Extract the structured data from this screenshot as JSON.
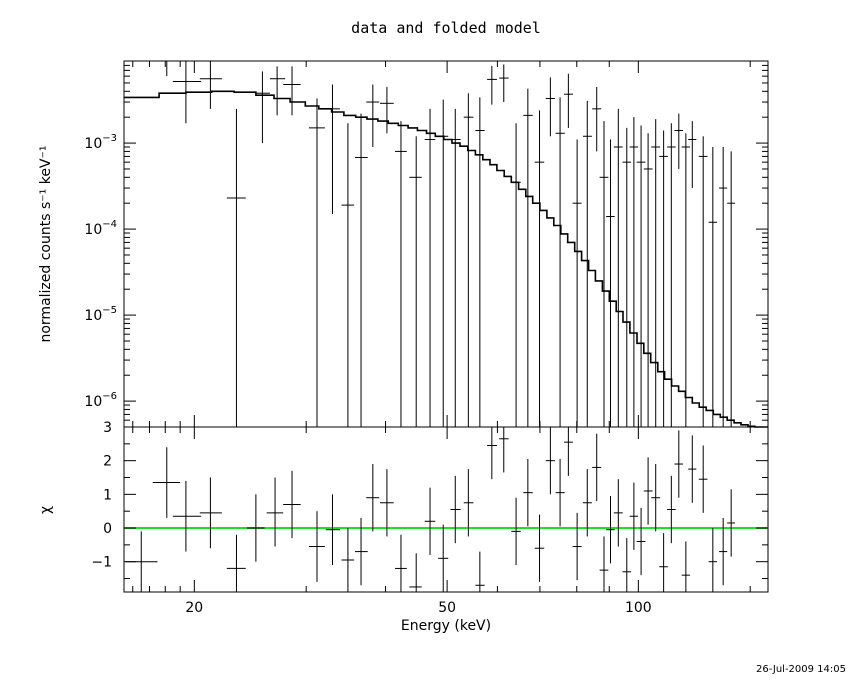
{
  "chart_data": {
    "type": "scatter",
    "title": "data and folded model",
    "xlabel": "Energy (keV)",
    "xscale": "log",
    "xlim": [
      15.5,
      160
    ],
    "x_ticks": [
      {
        "value": 20,
        "label": "20"
      },
      {
        "value": 50,
        "label": "50"
      },
      {
        "value": 100,
        "label": "100"
      }
    ],
    "top_panel": {
      "ylabel": "normalized counts s⁻¹ keV⁻¹",
      "yscale": "log",
      "ylim": [
        5e-07,
        0.009
      ],
      "y_ticks": [
        {
          "value": 0.001,
          "mantissa": "10",
          "exponent": "−3"
        },
        {
          "value": 0.0001,
          "mantissa": "10",
          "exponent": "−4"
        },
        {
          "value": 1e-05,
          "mantissa": "10",
          "exponent": "−5"
        },
        {
          "value": 1e-06,
          "mantissa": "10",
          "exponent": "−6"
        }
      ],
      "data_points": [
        {
          "x": 16.5,
          "xlo": 15.6,
          "xhi": 17.5,
          "y": 0.009,
          "ylo": 0.009,
          "yhi": 0.009
        },
        {
          "x": 18.1,
          "xlo": 17.2,
          "xhi": 19.0,
          "y": 0.009,
          "ylo": 0.006,
          "yhi": 0.009
        },
        {
          "x": 19.4,
          "xlo": 18.5,
          "xhi": 20.5,
          "y": 0.0052,
          "ylo": 0.0017,
          "yhi": 0.009
        },
        {
          "x": 21.2,
          "xlo": 20.4,
          "xhi": 22.1,
          "y": 0.0056,
          "ylo": 0.0025,
          "yhi": 0.009
        },
        {
          "x": 23.3,
          "xlo": 22.5,
          "xhi": 24.1,
          "y": 0.00023,
          "ylo": 5e-07,
          "yhi": 0.0025
        },
        {
          "x": 25.6,
          "xlo": 25.0,
          "xhi": 26.3,
          "y": 0.0038,
          "ylo": 0.001,
          "yhi": 0.0068
        },
        {
          "x": 27.0,
          "xlo": 26.3,
          "xhi": 27.8,
          "y": 0.0056,
          "ylo": 0.0021,
          "yhi": 0.0078
        },
        {
          "x": 28.5,
          "xlo": 27.6,
          "xhi": 29.4,
          "y": 0.0048,
          "ylo": 0.0021,
          "yhi": 0.0078
        },
        {
          "x": 31.2,
          "xlo": 30.3,
          "xhi": 32.1,
          "y": 0.0015,
          "ylo": 5e-07,
          "yhi": 0.0033
        },
        {
          "x": 33.0,
          "xlo": 32.2,
          "xhi": 33.9,
          "y": 0.0025,
          "ylo": 0.00015,
          "yhi": 0.0048
        },
        {
          "x": 34.9,
          "xlo": 34.1,
          "xhi": 35.7,
          "y": 0.00019,
          "ylo": 5e-07,
          "yhi": 0.0017
        },
        {
          "x": 36.6,
          "xlo": 35.8,
          "xhi": 37.5,
          "y": 0.00068,
          "ylo": 5e-07,
          "yhi": 0.0022
        },
        {
          "x": 38.2,
          "xlo": 37.3,
          "xhi": 39.1,
          "y": 0.003,
          "ylo": 0.0009,
          "yhi": 0.0048
        },
        {
          "x": 40.2,
          "xlo": 39.2,
          "xhi": 41.2,
          "y": 0.0029,
          "ylo": 0.0013,
          "yhi": 0.0045
        },
        {
          "x": 42.3,
          "xlo": 41.4,
          "xhi": 43.2,
          "y": 0.0008,
          "ylo": 5e-07,
          "yhi": 0.0018
        },
        {
          "x": 44.7,
          "xlo": 43.6,
          "xhi": 45.6,
          "y": 0.0004,
          "ylo": 5e-07,
          "yhi": 0.0012
        },
        {
          "x": 47.0,
          "xlo": 46.1,
          "xhi": 47.9,
          "y": 0.0011,
          "ylo": 5e-07,
          "yhi": 0.0025
        },
        {
          "x": 49.3,
          "xlo": 48.4,
          "xhi": 50.2,
          "y": 0.0012,
          "ylo": 5e-07,
          "yhi": 0.0032
        },
        {
          "x": 51.5,
          "xlo": 50.6,
          "xhi": 52.5,
          "y": 0.0011,
          "ylo": 5e-07,
          "yhi": 0.0025
        },
        {
          "x": 54.0,
          "xlo": 53.1,
          "xhi": 55.0,
          "y": 0.002,
          "ylo": 5e-07,
          "yhi": 0.0038
        },
        {
          "x": 56.3,
          "xlo": 55.4,
          "xhi": 57.3,
          "y": 0.0014,
          "ylo": 5e-07,
          "yhi": 0.0034
        },
        {
          "x": 58.8,
          "xlo": 57.8,
          "xhi": 59.9,
          "y": 0.0055,
          "ylo": 0.0028,
          "yhi": 0.0079
        },
        {
          "x": 61.4,
          "xlo": 60.4,
          "xhi": 62.5,
          "y": 0.0057,
          "ylo": 0.003,
          "yhi": 0.0082
        },
        {
          "x": 64.2,
          "xlo": 63.1,
          "xhi": 65.3,
          "y": 0.00035,
          "ylo": 5e-07,
          "yhi": 0.0017
        },
        {
          "x": 67.0,
          "xlo": 65.9,
          "xhi": 68.2,
          "y": 0.0021,
          "ylo": 5e-07,
          "yhi": 0.0043
        },
        {
          "x": 69.9,
          "xlo": 68.7,
          "xhi": 71.1,
          "y": 0.0006,
          "ylo": 5e-07,
          "yhi": 0.0024
        },
        {
          "x": 72.7,
          "xlo": 71.5,
          "xhi": 73.9,
          "y": 0.0033,
          "ylo": 0.0012,
          "yhi": 0.0058
        },
        {
          "x": 75.3,
          "xlo": 74.1,
          "xhi": 76.6,
          "y": 0.0013,
          "ylo": 5e-07,
          "yhi": 0.0034
        },
        {
          "x": 77.6,
          "xlo": 76.4,
          "xhi": 78.9,
          "y": 0.0037,
          "ylo": 0.0015,
          "yhi": 0.0064
        },
        {
          "x": 80.1,
          "xlo": 78.8,
          "xhi": 81.4,
          "y": 0.0002,
          "ylo": 5e-07,
          "yhi": 0.0011
        },
        {
          "x": 83.1,
          "xlo": 81.8,
          "xhi": 84.5,
          "y": 0.0012,
          "ylo": 5e-07,
          "yhi": 0.0031
        },
        {
          "x": 86.0,
          "xlo": 84.6,
          "xhi": 87.4,
          "y": 0.0025,
          "ylo": 0.0008,
          "yhi": 0.0045
        },
        {
          "x": 88.3,
          "xlo": 86.9,
          "xhi": 89.7,
          "y": 0.0004,
          "ylo": 5e-07,
          "yhi": 0.0018
        },
        {
          "x": 90.4,
          "xlo": 89.0,
          "xhi": 91.8,
          "y": 0.00014,
          "ylo": 5e-07,
          "yhi": 0.0011
        },
        {
          "x": 93.0,
          "xlo": 91.5,
          "xhi": 94.5,
          "y": 0.0009,
          "ylo": 5e-07,
          "yhi": 0.0025
        },
        {
          "x": 95.9,
          "xlo": 94.4,
          "xhi": 97.4,
          "y": 0.0006,
          "ylo": 5e-07,
          "yhi": 0.0015
        },
        {
          "x": 98.4,
          "xlo": 96.9,
          "xhi": 99.9,
          "y": 0.0009,
          "ylo": 5e-07,
          "yhi": 0.002
        },
        {
          "x": 101.0,
          "xlo": 99.4,
          "xhi": 102.6,
          "y": 0.0006,
          "ylo": 5e-07,
          "yhi": 0.0016
        },
        {
          "x": 103.6,
          "xlo": 102.0,
          "xhi": 105.3,
          "y": 0.0005,
          "ylo": 5e-07,
          "yhi": 0.0013
        },
        {
          "x": 106.5,
          "xlo": 104.8,
          "xhi": 108.2,
          "y": 0.0009,
          "ylo": 5e-07,
          "yhi": 0.0019
        },
        {
          "x": 109.6,
          "xlo": 107.9,
          "xhi": 111.3,
          "y": 0.0007,
          "ylo": 5e-07,
          "yhi": 0.0014
        },
        {
          "x": 112.7,
          "xlo": 111.0,
          "xhi": 114.5,
          "y": 0.0009,
          "ylo": 5e-07,
          "yhi": 0.0017
        },
        {
          "x": 115.8,
          "xlo": 114.0,
          "xhi": 117.6,
          "y": 0.0014,
          "ylo": 0.0005,
          "yhi": 0.0022
        },
        {
          "x": 118.8,
          "xlo": 117.0,
          "xhi": 120.6,
          "y": 0.0009,
          "ylo": 5e-07,
          "yhi": 0.0013
        },
        {
          "x": 121.6,
          "xlo": 119.8,
          "xhi": 123.4,
          "y": 0.0011,
          "ylo": 0.0003,
          "yhi": 0.0018
        },
        {
          "x": 126.5,
          "xlo": 124.5,
          "xhi": 128.5,
          "y": 0.0007,
          "ylo": 5e-07,
          "yhi": 0.0012
        },
        {
          "x": 131.0,
          "xlo": 129.0,
          "xhi": 133.0,
          "y": 0.00012,
          "ylo": 5e-07,
          "yhi": 0.0009
        },
        {
          "x": 136.0,
          "xlo": 134.0,
          "xhi": 138.0,
          "y": 0.0003,
          "ylo": 5e-07,
          "yhi": 0.0009
        },
        {
          "x": 140.0,
          "xlo": 138.0,
          "xhi": 142.0,
          "y": 0.0002,
          "ylo": 5e-07,
          "yhi": 0.0008
        }
      ],
      "model": {
        "edges": [
          15.5,
          17.6,
          19.4,
          21.3,
          23.1,
          25.0,
          26.7,
          28.3,
          29.9,
          31.4,
          32.9,
          34.4,
          35.9,
          37.4,
          38.9,
          40.4,
          41.9,
          43.4,
          44.9,
          46.4,
          47.9,
          49.4,
          50.9,
          52.4,
          53.9,
          55.4,
          56.9,
          58.4,
          59.9,
          61.5,
          63.1,
          64.8,
          66.5,
          68.2,
          70.0,
          71.8,
          73.6,
          75.5,
          77.4,
          79.4,
          81.4,
          83.5,
          85.6,
          87.8,
          90.0,
          92.3,
          94.6,
          97.0,
          99.5,
          102.0,
          104.6,
          107.3,
          110.0,
          112.8,
          115.7,
          118.6,
          121.6,
          124.7,
          127.9,
          131.2,
          134.6,
          138.0,
          141.5,
          145.1,
          148.8,
          152.6,
          160.0
        ],
        "values": [
          0.0034,
          0.0038,
          0.0039,
          0.004,
          0.0039,
          0.0036,
          0.0033,
          0.003,
          0.0027,
          0.0025,
          0.0023,
          0.0021,
          0.002,
          0.0019,
          0.0018,
          0.0017,
          0.0016,
          0.0015,
          0.0014,
          0.0013,
          0.0012,
          0.0011,
          0.001,
          0.00092,
          0.00082,
          0.00073,
          0.00064,
          0.00056,
          0.00048,
          0.00041,
          0.00035,
          0.00029,
          0.00024,
          0.0002,
          0.000165,
          0.000135,
          0.00011,
          8.8e-05,
          7e-05,
          5.5e-05,
          4.3e-05,
          3.3e-05,
          2.5e-05,
          1.9e-05,
          1.45e-05,
          1.1e-05,
          8.3e-06,
          6.2e-06,
          4.7e-06,
          3.6e-06,
          2.8e-06,
          2.2e-06,
          1.8e-06,
          1.5e-06,
          1.3e-06,
          1.1e-06,
          9.5e-07,
          8.5e-07,
          7.8e-07,
          7e-07,
          6.5e-07,
          6e-07,
          5.6e-07,
          5.3e-07,
          5.1e-07,
          5e-07
        ]
      }
    },
    "bottom_panel": {
      "ylabel": "χ",
      "ylim": [
        -1.9,
        3.0
      ],
      "y_ticks": [
        {
          "value": 3,
          "label": "3"
        },
        {
          "value": 2,
          "label": "2"
        },
        {
          "value": 1,
          "label": "1"
        },
        {
          "value": 0,
          "label": "0"
        },
        {
          "value": -1,
          "label": "−1"
        }
      ],
      "zero_line": {
        "value": 0,
        "color": "#22dd22"
      },
      "residuals": [
        {
          "x": 16.5,
          "xlo": 15.6,
          "xhi": 17.5,
          "y": -1.0,
          "ylo": -1.9,
          "yhi": -0.1
        },
        {
          "x": 18.1,
          "xlo": 17.2,
          "xhi": 19.0,
          "y": 1.35,
          "ylo": 0.3,
          "yhi": 2.4
        },
        {
          "x": 19.4,
          "xlo": 18.5,
          "xhi": 20.5,
          "y": 0.35,
          "ylo": -0.7,
          "yhi": 1.4
        },
        {
          "x": 21.2,
          "xlo": 20.4,
          "xhi": 22.1,
          "y": 0.45,
          "ylo": -0.6,
          "yhi": 1.5
        },
        {
          "x": 23.3,
          "xlo": 22.5,
          "xhi": 24.1,
          "y": -1.2,
          "ylo": -1.9,
          "yhi": -0.2
        },
        {
          "x": 25.0,
          "xlo": 24.2,
          "xhi": 25.8,
          "y": 0.0,
          "ylo": -1.0,
          "yhi": 1.0
        },
        {
          "x": 26.8,
          "xlo": 26.0,
          "xhi": 27.6,
          "y": 0.45,
          "ylo": -0.55,
          "yhi": 1.5
        },
        {
          "x": 28.5,
          "xlo": 27.6,
          "xhi": 29.4,
          "y": 0.7,
          "ylo": -0.3,
          "yhi": 1.7
        },
        {
          "x": 31.2,
          "xlo": 30.3,
          "xhi": 32.1,
          "y": -0.55,
          "ylo": -1.6,
          "yhi": 0.5
        },
        {
          "x": 33.0,
          "xlo": 32.2,
          "xhi": 33.9,
          "y": -0.05,
          "ylo": -1.1,
          "yhi": 1.0
        },
        {
          "x": 34.9,
          "xlo": 34.1,
          "xhi": 35.7,
          "y": -0.95,
          "ylo": -1.9,
          "yhi": 0.0
        },
        {
          "x": 36.6,
          "xlo": 35.8,
          "xhi": 37.5,
          "y": -0.7,
          "ylo": -1.7,
          "yhi": 0.3
        },
        {
          "x": 38.2,
          "xlo": 37.3,
          "xhi": 39.1,
          "y": 0.9,
          "ylo": -0.1,
          "yhi": 1.9
        },
        {
          "x": 40.2,
          "xlo": 39.2,
          "xhi": 41.2,
          "y": 0.75,
          "ylo": -0.25,
          "yhi": 1.75
        },
        {
          "x": 42.3,
          "xlo": 41.4,
          "xhi": 43.2,
          "y": -1.2,
          "ylo": -1.9,
          "yhi": -0.2
        },
        {
          "x": 44.7,
          "xlo": 43.6,
          "xhi": 45.6,
          "y": -1.75,
          "ylo": -1.9,
          "yhi": -0.75
        },
        {
          "x": 47.0,
          "xlo": 46.1,
          "xhi": 47.9,
          "y": 0.2,
          "ylo": -0.8,
          "yhi": 1.2
        },
        {
          "x": 49.3,
          "xlo": 48.4,
          "xhi": 50.2,
          "y": -0.9,
          "ylo": -1.9,
          "yhi": 0.1
        },
        {
          "x": 51.5,
          "xlo": 50.6,
          "xhi": 52.5,
          "y": 0.55,
          "ylo": -0.45,
          "yhi": 1.55
        },
        {
          "x": 54.0,
          "xlo": 53.1,
          "xhi": 55.0,
          "y": 0.75,
          "ylo": -0.25,
          "yhi": 1.75
        },
        {
          "x": 56.3,
          "xlo": 55.4,
          "xhi": 57.3,
          "y": -1.7,
          "ylo": -1.9,
          "yhi": -0.7
        },
        {
          "x": 58.8,
          "xlo": 57.8,
          "xhi": 59.9,
          "y": 2.45,
          "ylo": 1.45,
          "yhi": 3.0
        },
        {
          "x": 61.4,
          "xlo": 60.4,
          "xhi": 62.5,
          "y": 2.65,
          "ylo": 1.65,
          "yhi": 3.0
        },
        {
          "x": 64.2,
          "xlo": 63.1,
          "xhi": 65.3,
          "y": -0.1,
          "ylo": -1.1,
          "yhi": 0.9
        },
        {
          "x": 67.0,
          "xlo": 65.9,
          "xhi": 68.2,
          "y": 1.05,
          "ylo": 0.05,
          "yhi": 2.05
        },
        {
          "x": 69.9,
          "xlo": 68.7,
          "xhi": 71.1,
          "y": -0.6,
          "ylo": -1.6,
          "yhi": 0.4
        },
        {
          "x": 72.7,
          "xlo": 71.5,
          "xhi": 73.9,
          "y": 2.0,
          "ylo": 1.0,
          "yhi": 3.0
        },
        {
          "x": 75.3,
          "xlo": 74.1,
          "xhi": 76.6,
          "y": 1.05,
          "ylo": 0.05,
          "yhi": 2.05
        },
        {
          "x": 77.6,
          "xlo": 76.4,
          "xhi": 78.9,
          "y": 2.55,
          "ylo": 1.55,
          "yhi": 3.0
        },
        {
          "x": 80.1,
          "xlo": 78.8,
          "xhi": 81.4,
          "y": -0.55,
          "ylo": -1.55,
          "yhi": 0.45
        },
        {
          "x": 83.1,
          "xlo": 81.8,
          "xhi": 84.5,
          "y": 0.75,
          "ylo": -0.25,
          "yhi": 1.75
        },
        {
          "x": 86.0,
          "xlo": 84.6,
          "xhi": 87.4,
          "y": 1.8,
          "ylo": 0.8,
          "yhi": 2.8
        },
        {
          "x": 88.3,
          "xlo": 86.9,
          "xhi": 89.7,
          "y": -1.25,
          "ylo": -1.9,
          "yhi": -0.25
        },
        {
          "x": 90.4,
          "xlo": 89.0,
          "xhi": 91.8,
          "y": -0.05,
          "ylo": -1.05,
          "yhi": 0.95
        },
        {
          "x": 93.0,
          "xlo": 91.5,
          "xhi": 94.5,
          "y": 0.45,
          "ylo": -0.55,
          "yhi": 1.45
        },
        {
          "x": 95.9,
          "xlo": 94.4,
          "xhi": 97.4,
          "y": -1.3,
          "ylo": -1.9,
          "yhi": -0.3
        },
        {
          "x": 98.4,
          "xlo": 96.9,
          "xhi": 99.9,
          "y": 0.35,
          "ylo": -0.65,
          "yhi": 1.35
        },
        {
          "x": 101.0,
          "xlo": 99.4,
          "xhi": 102.6,
          "y": -0.4,
          "ylo": -1.4,
          "yhi": 0.6
        },
        {
          "x": 103.6,
          "xlo": 102.0,
          "xhi": 105.3,
          "y": 1.1,
          "ylo": 0.1,
          "yhi": 2.1
        },
        {
          "x": 106.5,
          "xlo": 104.8,
          "xhi": 108.2,
          "y": 0.9,
          "ylo": -0.1,
          "yhi": 1.9
        },
        {
          "x": 109.6,
          "xlo": 107.9,
          "xhi": 111.3,
          "y": -1.15,
          "ylo": -1.9,
          "yhi": -0.15
        },
        {
          "x": 112.7,
          "xlo": 111.0,
          "xhi": 114.5,
          "y": 0.55,
          "ylo": -0.45,
          "yhi": 1.55
        },
        {
          "x": 115.8,
          "xlo": 114.0,
          "xhi": 117.6,
          "y": 1.9,
          "ylo": 0.9,
          "yhi": 2.9
        },
        {
          "x": 118.8,
          "xlo": 117.0,
          "xhi": 120.6,
          "y": -1.4,
          "ylo": -1.9,
          "yhi": -0.4
        },
        {
          "x": 121.6,
          "xlo": 119.8,
          "xhi": 123.4,
          "y": 1.75,
          "ylo": 0.75,
          "yhi": 2.75
        },
        {
          "x": 126.5,
          "xlo": 124.5,
          "xhi": 128.5,
          "y": 1.45,
          "ylo": 0.45,
          "yhi": 2.45
        },
        {
          "x": 131.0,
          "xlo": 129.0,
          "xhi": 133.0,
          "y": -1.0,
          "ylo": -1.9,
          "yhi": 0.0
        },
        {
          "x": 136.0,
          "xlo": 134.0,
          "xhi": 138.0,
          "y": -0.7,
          "ylo": -1.7,
          "yhi": 0.3
        },
        {
          "x": 140.0,
          "xlo": 138.0,
          "xhi": 142.0,
          "y": 0.15,
          "ylo": -0.85,
          "yhi": 1.15
        }
      ]
    },
    "timestamp": "26-Jul-2009 14:05"
  }
}
